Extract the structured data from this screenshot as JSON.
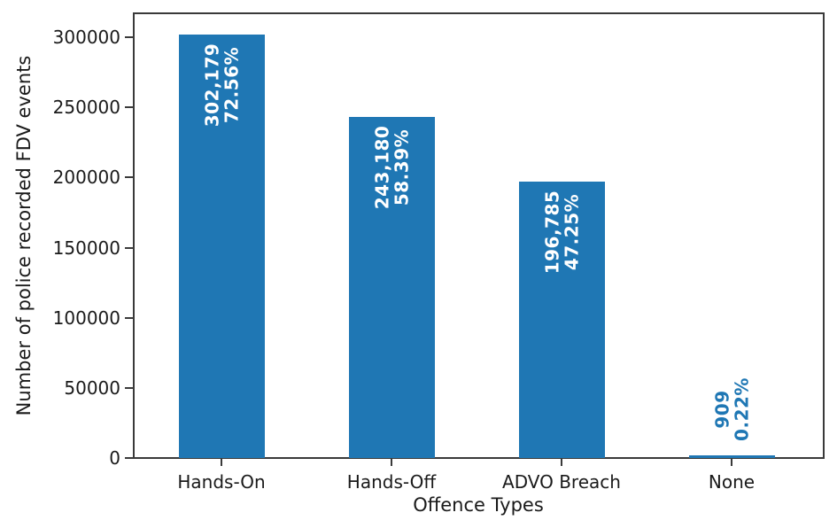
{
  "chart_data": {
    "type": "bar",
    "title": "",
    "categories": [
      "Hands-On",
      "Hands-Off",
      "ADVO Breach",
      "None"
    ],
    "values": [
      302179,
      243180,
      196785,
      909
    ],
    "value_labels": [
      "302,179",
      "243,180",
      "196,785",
      "909"
    ],
    "pct_labels": [
      "72.56%",
      "58.39%",
      "47.25%",
      "0.22%"
    ],
    "xlabel": "Offence Types",
    "ylabel": "Number of police recorded FDV events",
    "ylim": [
      0,
      317700
    ],
    "yticks": [
      0,
      50000,
      100000,
      150000,
      200000,
      250000,
      300000
    ],
    "ytick_labels": [
      "0",
      "50000",
      "100000",
      "150000",
      "200000",
      "250000",
      "300000"
    ],
    "grid": false,
    "legend": "none",
    "bar_color": "#1f77b4",
    "bar_label_color_inside": "#ffffff",
    "bar_label_color_outside": "#1f77b4",
    "spine_color": "#3a3a3a"
  }
}
